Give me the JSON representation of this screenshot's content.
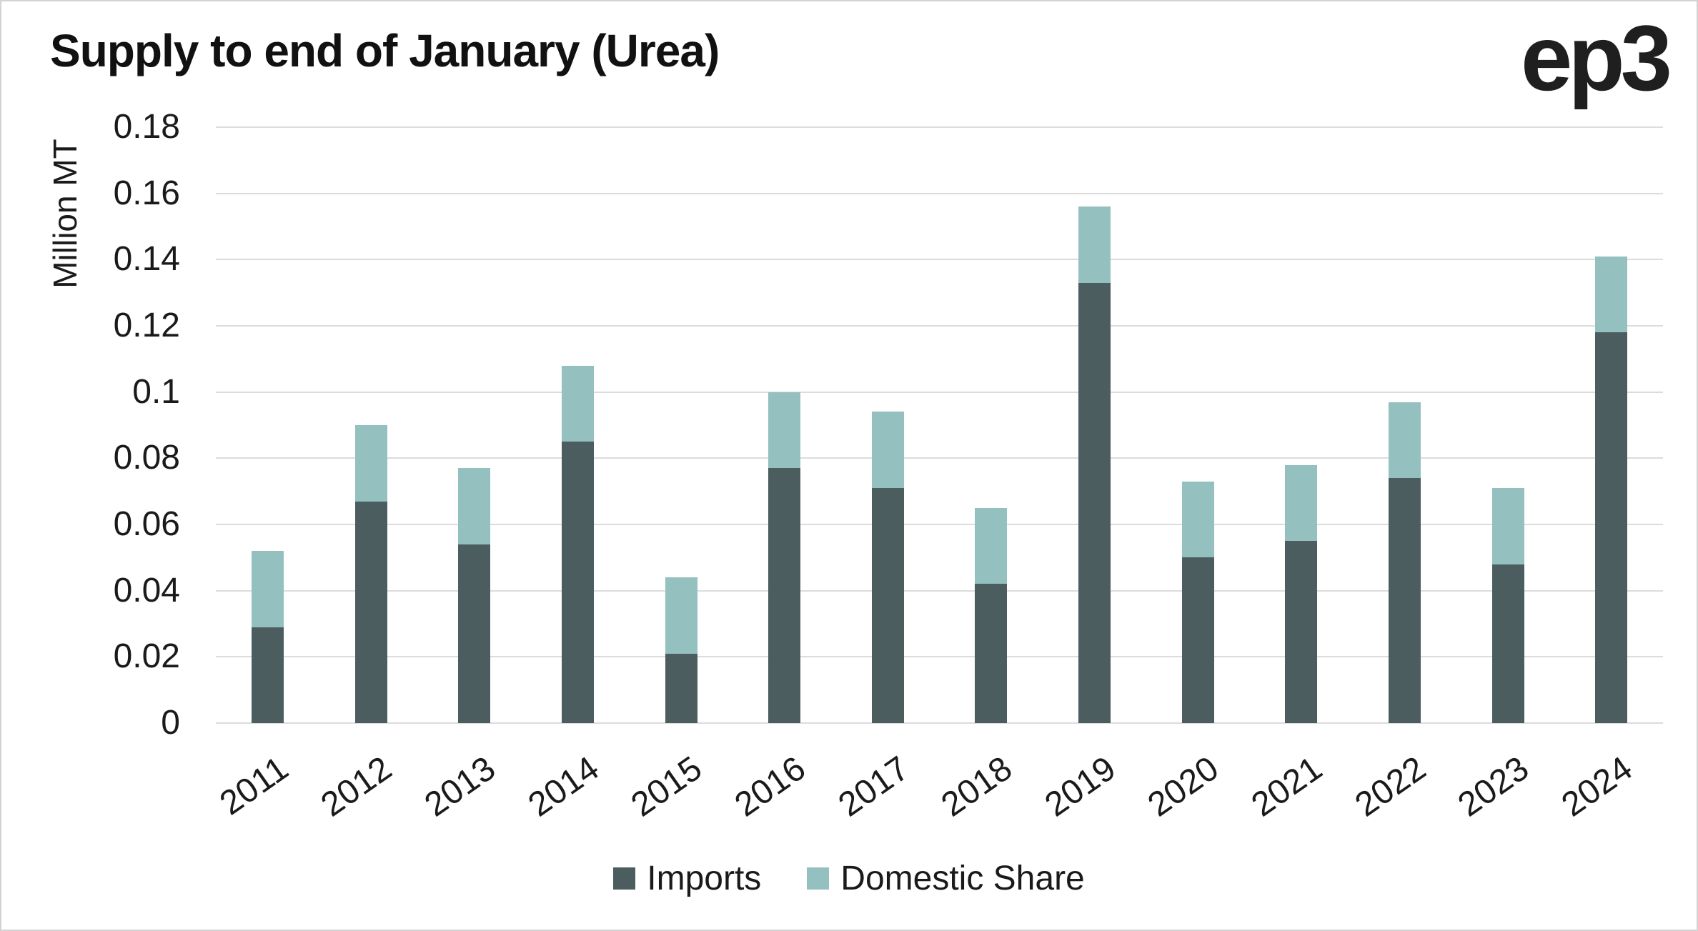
{
  "header": {
    "title": "Supply to end of January (Urea)",
    "logo": "ep3"
  },
  "colors": {
    "imports": "#4b5d5f",
    "domestic_share": "#94c1bf",
    "gridline": "#dcdcdc",
    "text": "#1a1a1a",
    "background": "#ffffff",
    "border": "#d3d3d3"
  },
  "chart_data": {
    "type": "bar",
    "stacked": true,
    "title": "Supply to end of January (Urea)",
    "xlabel": "",
    "ylabel": "Million MT",
    "ylim": [
      0,
      0.18
    ],
    "ytick_labels": [
      "0",
      "0.02",
      "0.04",
      "0.06",
      "0.08",
      "0.1",
      "0.12",
      "0.14",
      "0.16",
      "0.18"
    ],
    "grid": "horizontal",
    "legend_position": "bottom",
    "categories": [
      "2011",
      "2012",
      "2013",
      "2014",
      "2015",
      "2016",
      "2017",
      "2018",
      "2019",
      "2020",
      "2021",
      "2022",
      "2023",
      "2024"
    ],
    "series": [
      {
        "name": "Imports",
        "color": "#4b5d5f",
        "values": [
          0.029,
          0.067,
          0.054,
          0.085,
          0.021,
          0.077,
          0.071,
          0.042,
          0.133,
          0.05,
          0.055,
          0.074,
          0.048,
          0.118
        ]
      },
      {
        "name": "Domestic Share",
        "color": "#94c1bf",
        "values": [
          0.023,
          0.023,
          0.023,
          0.023,
          0.023,
          0.023,
          0.023,
          0.023,
          0.023,
          0.023,
          0.023,
          0.023,
          0.023,
          0.023
        ]
      }
    ]
  }
}
